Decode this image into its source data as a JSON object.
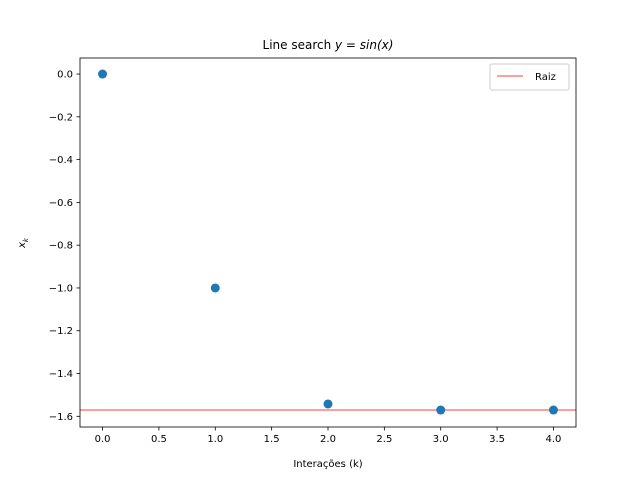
{
  "chart_data": {
    "type": "scatter",
    "title": "Line search y = sin(x)",
    "title_parts": {
      "prefix": "Line search ",
      "math": "y = sin(x)"
    },
    "xlabel": "Interações (k)",
    "ylabel": "x_k",
    "ylabel_parts": {
      "base": "x",
      "sub": "k"
    },
    "xlim": [
      -0.2,
      4.2
    ],
    "ylim": [
      -1.65,
      0.075
    ],
    "xticks": [
      0.0,
      0.5,
      1.0,
      1.5,
      2.0,
      2.5,
      3.0,
      3.5,
      4.0
    ],
    "xtick_labels": [
      "0.0",
      "0.5",
      "1.0",
      "1.5",
      "2.0",
      "2.5",
      "3.0",
      "3.5",
      "4.0"
    ],
    "yticks": [
      0.0,
      -0.2,
      -0.4,
      -0.6,
      -0.8,
      -1.0,
      -1.2,
      -1.4,
      -1.6
    ],
    "ytick_labels": [
      "0.0",
      "−0.2",
      "−0.4",
      "−0.6",
      "−0.8",
      "−1.0",
      "−1.2",
      "−1.4",
      "−1.6"
    ],
    "series": [
      {
        "color": "#1f77b4",
        "x": [
          0,
          1,
          2,
          3,
          4
        ],
        "y": [
          0.0,
          -1.0,
          -1.5423,
          -1.5708,
          -1.5708
        ]
      }
    ],
    "hlines": [
      {
        "name": "Raiz",
        "y": -1.5708,
        "color": "#ff7f7f"
      }
    ],
    "legend": {
      "position": "top-right",
      "entries": [
        "Raiz"
      ]
    },
    "grid": false
  }
}
